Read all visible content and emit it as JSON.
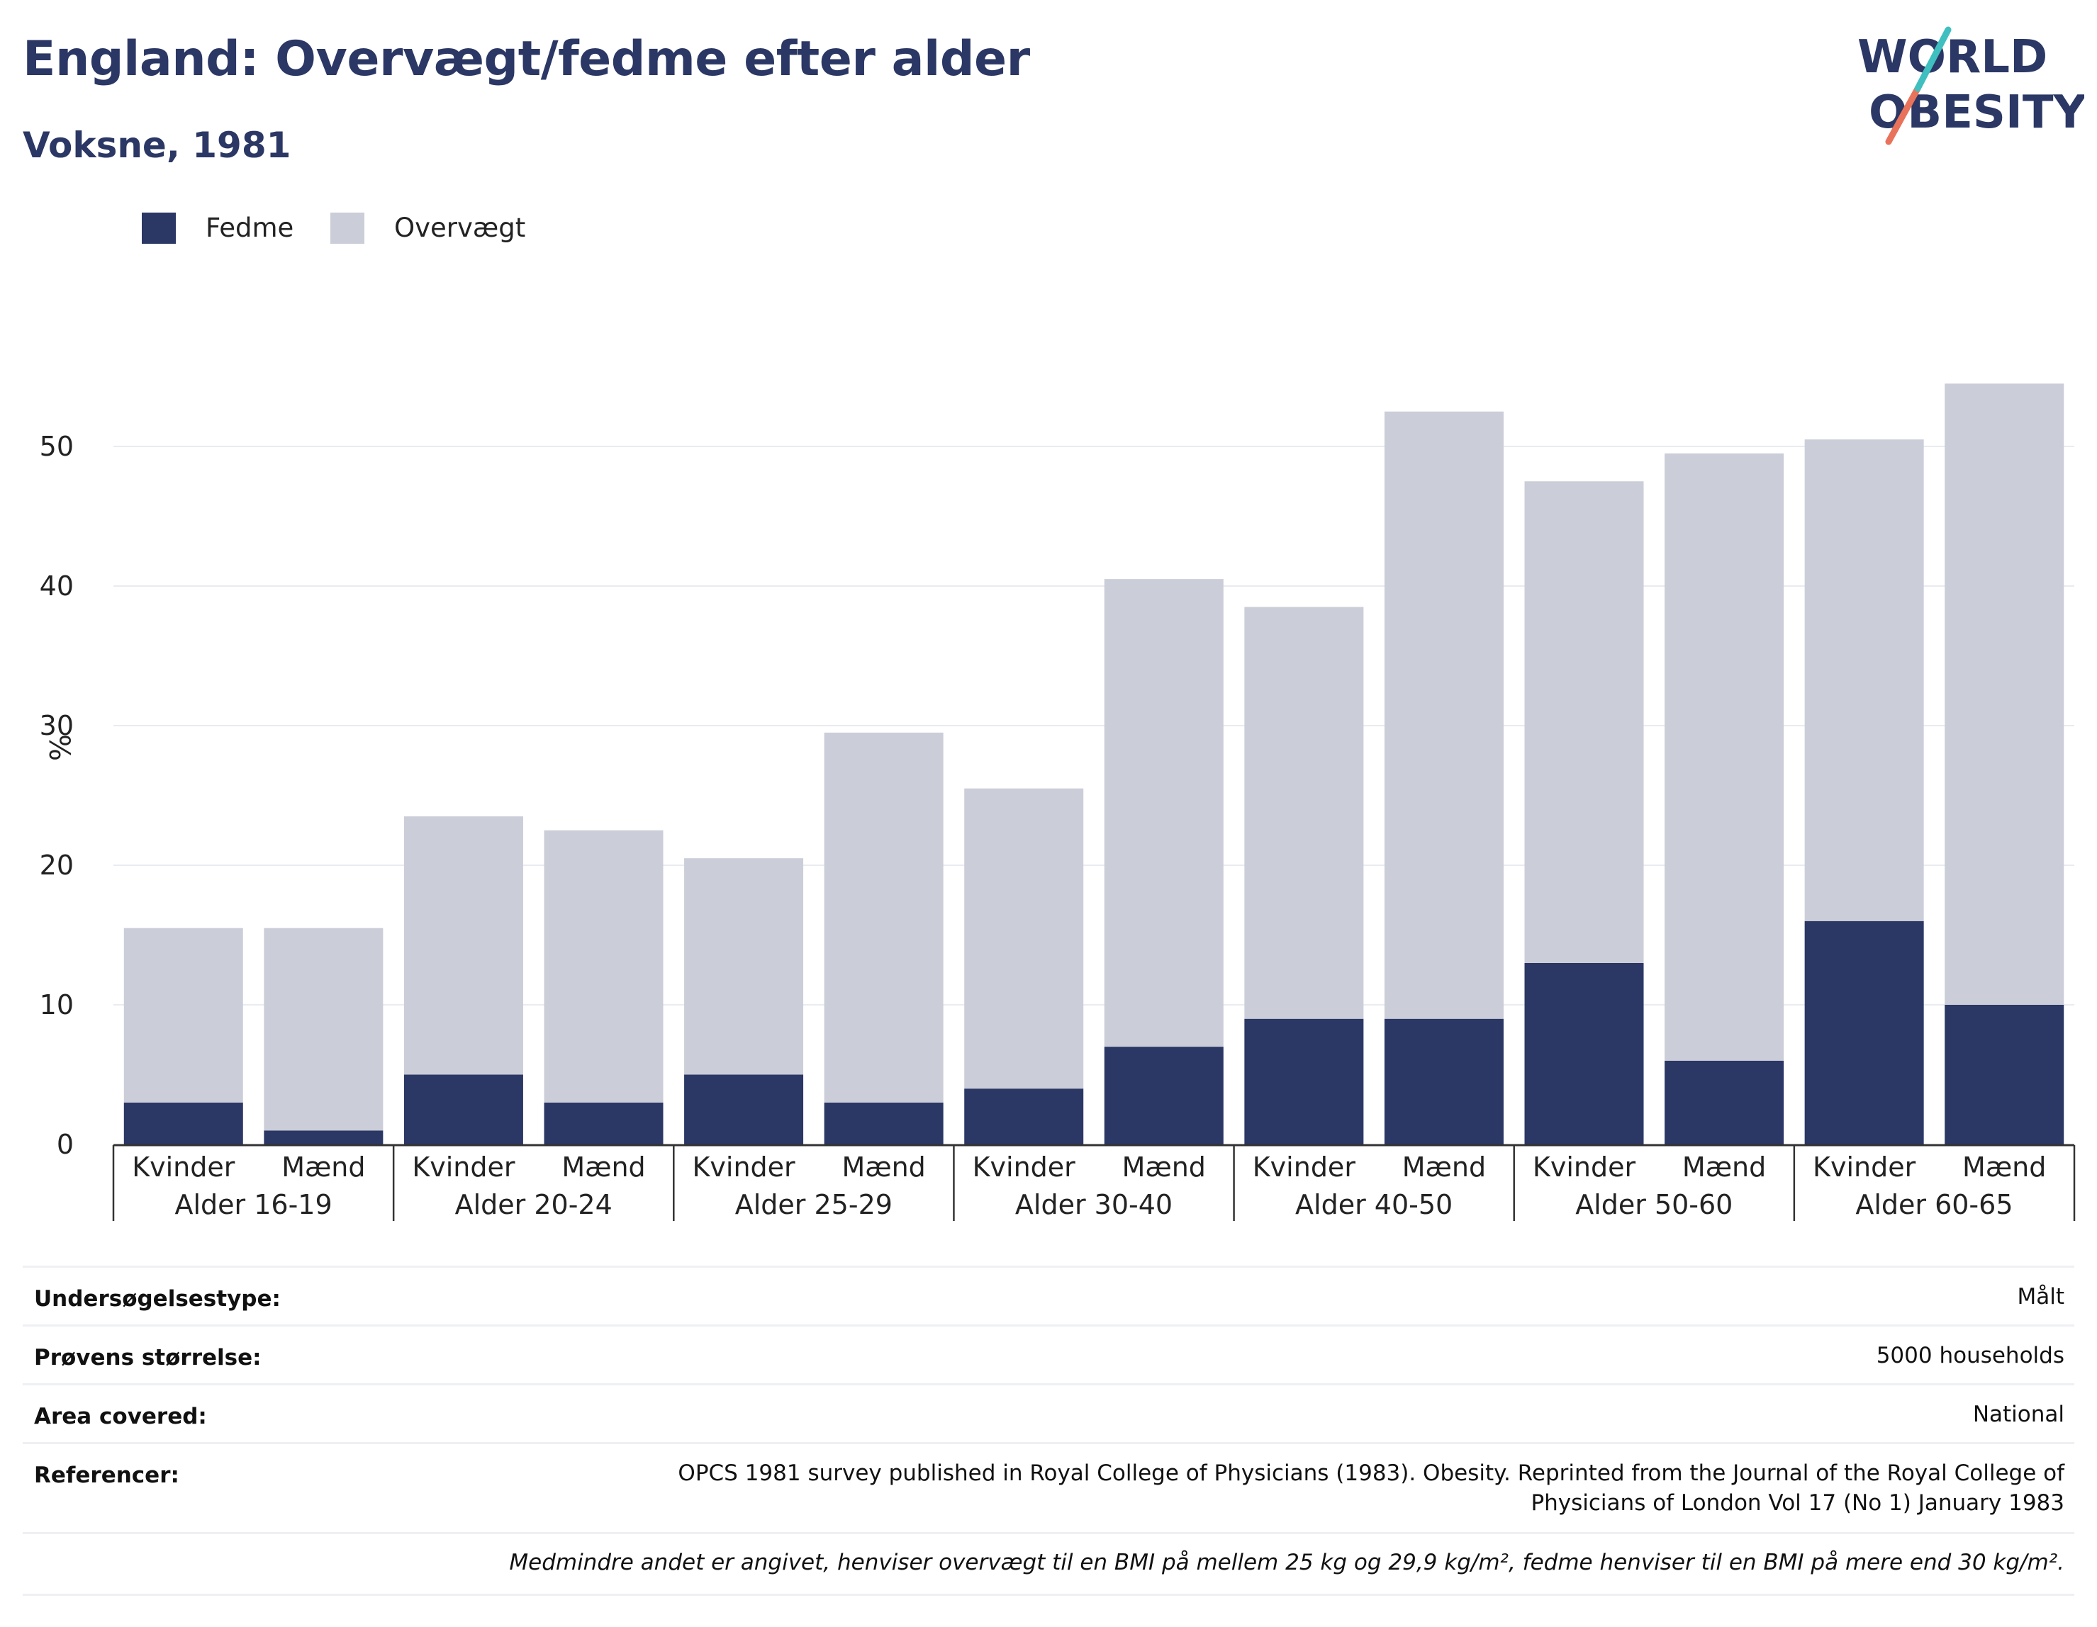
{
  "header": {
    "title": "England: Overvægt/fedme efter alder",
    "subtitle": "Voksne, 1981"
  },
  "logo": {
    "line1": "WORLD",
    "line2": "OBESITY",
    "colors": {
      "text": "#2b3764",
      "slash_orange": "#e8735a",
      "slash_teal": "#3fbfbf"
    }
  },
  "legend": [
    {
      "label": "Fedme",
      "color": "#2b3764"
    },
    {
      "label": "Overvægt",
      "color": "#cbcdd8"
    }
  ],
  "chart_data": {
    "type": "bar",
    "stacked": true,
    "ylabel": "%",
    "ylim": [
      0,
      57
    ],
    "yticks": [
      0,
      10,
      20,
      30,
      40,
      50
    ],
    "grid": true,
    "legend_position": "top-left",
    "groups": [
      "Alder 16-19",
      "Alder 20-24",
      "Alder 25-29",
      "Alder 30-40",
      "Alder 40-50",
      "Alder 50-60",
      "Alder 60-65"
    ],
    "subcategories": [
      "Kvinder",
      "Mænd"
    ],
    "series": [
      {
        "name": "Fedme",
        "color": "#2b3764",
        "values": [
          3,
          1,
          5,
          3,
          5,
          3,
          4,
          7,
          9,
          9,
          13,
          6,
          16,
          10
        ]
      },
      {
        "name": "Overvægt",
        "color": "#cbcdd8",
        "values": [
          12.5,
          14.5,
          18.5,
          19.5,
          15.5,
          26.5,
          21.5,
          33.5,
          29.5,
          43.5,
          34.5,
          43.5,
          34.5,
          44.5
        ]
      }
    ]
  },
  "info_table": [
    {
      "label": "Undersøgelsestype:",
      "value": "Målt"
    },
    {
      "label": "Prøvens størrelse:",
      "value": "5000 households"
    },
    {
      "label": "Area covered:",
      "value": "National"
    },
    {
      "label": "Referencer:",
      "value_lines": [
        "OPCS 1981 survey published in Royal College of Physicians (1983). Obesity. Reprinted from the Journal of the Royal College of",
        "Physicians of London Vol 17 (No 1) January 1983"
      ]
    }
  ],
  "footnote": "Medmindre andet er angivet, henviser overvægt til en BMI på mellem 25 kg og 29,9 kg/m², fedme henviser til en BMI på mere end 30 kg/m²."
}
